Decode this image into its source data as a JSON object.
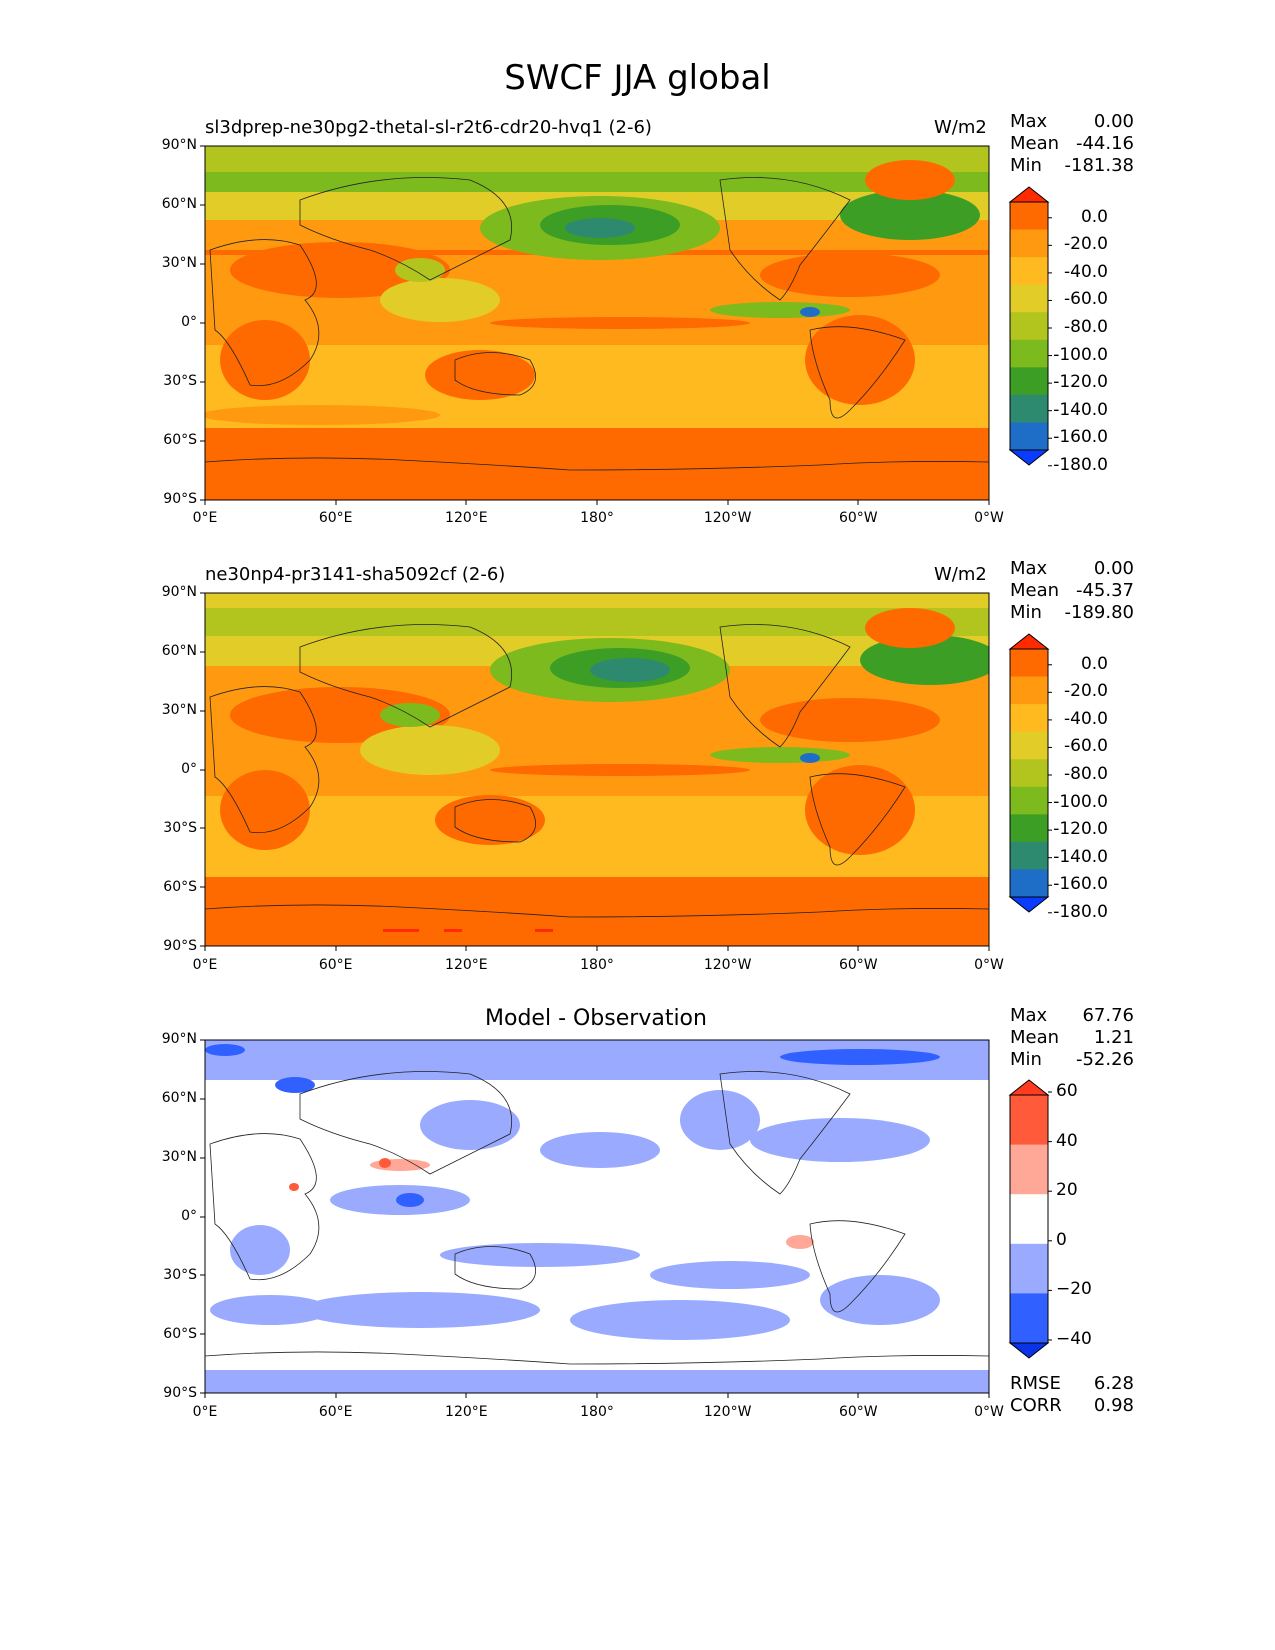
{
  "figure_title": "SWCF JJA global",
  "lat_ticks": [
    "90°N",
    "60°N",
    "30°N",
    "0°",
    "30°S",
    "60°S",
    "90°S"
  ],
  "lon_ticks": [
    "0°E",
    "60°E",
    "120°E",
    "180°",
    "120°W",
    "60°W",
    "0°W"
  ],
  "panels": [
    {
      "name": "test",
      "label": "sl3dprep-ne30pg2-thetal-sl-r2t6-cdr20-hvq1 (2-6)",
      "units": "W/m2",
      "stats": {
        "max_label": "Max",
        "max": "0.00",
        "mean_label": "Mean",
        "mean": "-44.16",
        "min_label": "Min",
        "min": "-181.38"
      },
      "colorbar_ticks": [
        "0.0",
        "-20.0",
        "-40.0",
        "-60.0",
        "-80.0",
        "-100.0",
        "-120.0",
        "-140.0",
        "-160.0",
        "-180.0"
      ]
    },
    {
      "name": "reference",
      "label": "ne30np4-pr3141-sha5092cf (2-6)",
      "units": "W/m2",
      "stats": {
        "max_label": "Max",
        "max": "0.00",
        "mean_label": "Mean",
        "mean": "-45.37",
        "min_label": "Min",
        "min": "-189.80"
      },
      "colorbar_ticks": [
        "0.0",
        "-20.0",
        "-40.0",
        "-60.0",
        "-80.0",
        "-100.0",
        "-120.0",
        "-140.0",
        "-160.0",
        "-180.0"
      ]
    },
    {
      "name": "difference",
      "title": "Model - Observation",
      "stats": {
        "max_label": "Max",
        "max": "67.76",
        "mean_label": "Mean",
        "mean": "1.21",
        "min_label": "Min",
        "min": "-52.26"
      },
      "colorbar_ticks": [
        "60",
        "40",
        "20",
        "0",
        "−20",
        "−40"
      ],
      "rmse_label": "RMSE",
      "rmse": "6.28",
      "corr_label": "CORR",
      "corr": "0.98"
    }
  ],
  "colors": {
    "abs_levels": [
      "#ff2a00",
      "#ff6a00",
      "#ff9a10",
      "#ffba20",
      "#e2cc28",
      "#b2c51e",
      "#7dba1e",
      "#3c9e24",
      "#2e8a6e",
      "#1e6ec8",
      "#0a3cff"
    ],
    "diff_levels": [
      "#ff3c20",
      "#ff5a3a",
      "#ffa898",
      "#ffffff",
      "#99aaff",
      "#3060ff",
      "#0a32e6"
    ]
  }
}
